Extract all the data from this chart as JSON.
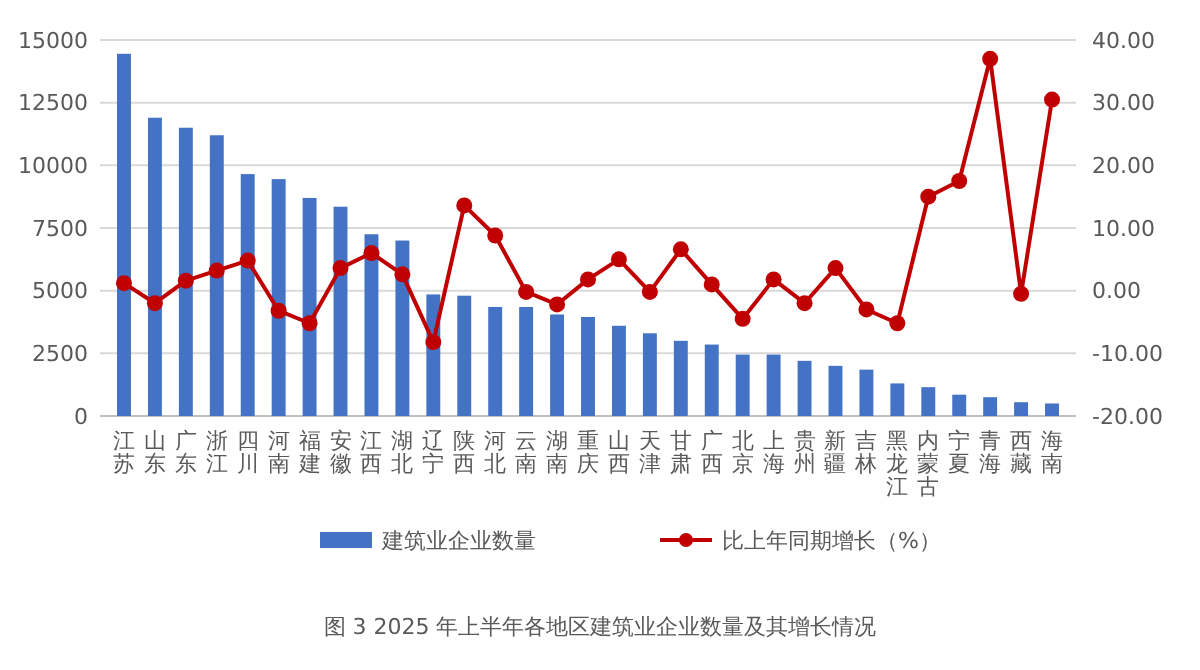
{
  "chart_data": {
    "type": "bar",
    "annotations": [
      "图 3 2025 年上半年各地区建筑业企业数量及其增长情况"
    ],
    "categories": [
      "江苏",
      "山东",
      "广东",
      "浙江",
      "四川",
      "河南",
      "福建",
      "安徽",
      "江西",
      "湖北",
      "辽宁",
      "陕西",
      "河北",
      "云南",
      "湖南",
      "重庆",
      "山西",
      "天津",
      "甘肃",
      "广西",
      "北京",
      "上海",
      "贵州",
      "新疆",
      "吉林",
      "黑龙江",
      "内蒙古",
      "宁夏",
      "青海",
      "西藏",
      "海南"
    ],
    "series": [
      {
        "name": "建筑业企业数量",
        "color": "#4472c4",
        "values": [
          14450,
          11900,
          11500,
          11200,
          9650,
          9450,
          8700,
          8350,
          7250,
          7000,
          4850,
          4800,
          4350,
          4350,
          4050,
          3950,
          3600,
          3300,
          3000,
          2850,
          2450,
          2450,
          2200,
          2000,
          1850,
          1300,
          1150,
          850,
          750,
          550,
          500
        ]
      },
      {
        "name": "比上年同期增长（%）",
        "type": "line",
        "axis": "y2",
        "color": "#c00000",
        "marker": "circle",
        "values": [
          1.2,
          -2,
          1.6,
          3.2,
          4.8,
          -3.2,
          -5.2,
          3.6,
          6,
          2.6,
          -8.2,
          13.6,
          8.8,
          -0.2,
          -2.2,
          1.8,
          5,
          -0.2,
          6.6,
          1,
          -4.5,
          1.8,
          -2,
          3.6,
          -3,
          -5.2,
          15,
          17.5,
          37,
          -0.5,
          30.5
        ]
      }
    ],
    "ylim": [
      0,
      15000
    ],
    "yticks": [
      0,
      2500,
      5000,
      7500,
      10000,
      12500,
      15000
    ],
    "y2lim": [
      -20,
      40
    ],
    "y2ticks": [
      {
        "value": -20,
        "label": "-20.00"
      },
      {
        "value": -10,
        "label": "-10.00"
      },
      {
        "value": 0,
        "label": "0.00"
      },
      {
        "value": 10,
        "label": "10.00"
      },
      {
        "value": 20,
        "label": "20.00"
      },
      {
        "value": 30,
        "label": "30.00"
      },
      {
        "value": 40,
        "label": "40.00"
      }
    ],
    "grid": "y",
    "legend": "bottom"
  }
}
